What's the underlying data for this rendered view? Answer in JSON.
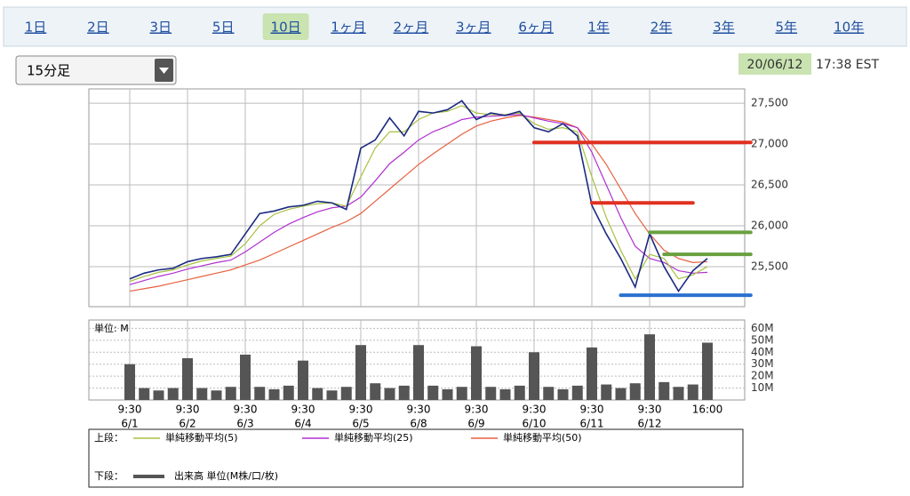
{
  "tabs": [
    "1日",
    "2日",
    "3日",
    "5日",
    "10日",
    "1ヶ月",
    "2ヶ月",
    "3ヶ月",
    "6ヶ月",
    "1年",
    "2年",
    "3年",
    "5年",
    "10年"
  ],
  "selected_tab": 4,
  "interval": "15分足",
  "date": "20/06/12",
  "time": "17:38 EST",
  "legend_upper_label": "上段：",
  "legend_lower_label": "下段：",
  "chart_data": [
    {
      "type": "line",
      "categories": [
        "9:30",
        null,
        null,
        null,
        "9:30",
        null,
        null,
        null,
        "9:30",
        null,
        null,
        null,
        "9:30",
        null,
        null,
        null,
        "9:30",
        null,
        null,
        null,
        "9:30",
        null,
        null,
        null,
        "9:30",
        null,
        null,
        null,
        "9:30",
        null,
        null,
        null,
        "9:30",
        null,
        null,
        null,
        "9:30",
        null,
        null,
        null,
        "16:00"
      ],
      "dates": [
        "6/1",
        null,
        null,
        null,
        "6/2",
        null,
        null,
        null,
        "6/3",
        null,
        null,
        null,
        "6/4",
        null,
        null,
        null,
        "6/5",
        null,
        null,
        null,
        "6/8",
        null,
        null,
        null,
        "6/9",
        null,
        null,
        null,
        "6/10",
        null,
        null,
        null,
        "6/11",
        null,
        null,
        null,
        "6/12",
        null,
        null,
        null,
        null
      ],
      "ylim": [
        25010,
        27675
      ],
      "yticks": [
        {
          "value": 25500,
          "label": "25,500"
        },
        {
          "value": 26000,
          "label": "26,000"
        },
        {
          "value": 26500,
          "label": "26,500"
        },
        {
          "value": 27000,
          "label": "27,000"
        },
        {
          "value": 27500,
          "label": "27,500"
        }
      ],
      "grid": true,
      "series": [
        {
          "color": "#1a2a80",
          "values": [
            25350,
            25420,
            25460,
            25480,
            25560,
            25600,
            25620,
            25650,
            25900,
            26150,
            26180,
            26230,
            26250,
            26300,
            26280,
            26200,
            26950,
            27050,
            27320,
            27100,
            27400,
            27380,
            27420,
            27530,
            27300,
            27380,
            27350,
            27400,
            27200,
            27150,
            27250,
            27100,
            26250,
            25900,
            25600,
            25250,
            25900,
            25500,
            25200,
            25450,
            25600
          ]
        },
        {
          "name": "単純移動平均(5)",
          "color": "#a8c040",
          "values": [
            25320,
            25380,
            25430,
            25460,
            25520,
            25570,
            25600,
            25630,
            25780,
            26000,
            26140,
            26200,
            26240,
            26270,
            26280,
            26240,
            26600,
            26950,
            27150,
            27150,
            27300,
            27380,
            27400,
            27470,
            27380,
            27360,
            27360,
            27380,
            27250,
            27180,
            27200,
            27150,
            26600,
            26100,
            25700,
            25350,
            25650,
            25600,
            25350,
            25400,
            25500
          ]
        },
        {
          "name": "単純移動平均(25)",
          "color": "#b030d0",
          "values": [
            25280,
            25330,
            25380,
            25420,
            25470,
            25510,
            25550,
            25580,
            25680,
            25800,
            25920,
            26020,
            26100,
            26170,
            26220,
            26240,
            26350,
            26550,
            26760,
            26900,
            27050,
            27150,
            27220,
            27300,
            27330,
            27340,
            27350,
            27360,
            27320,
            27280,
            27250,
            27200,
            26900,
            26500,
            26100,
            25750,
            25600,
            25550,
            25450,
            25420,
            25430
          ]
        },
        {
          "name": "単純移動平均(50)",
          "color": "#e86040",
          "values": [
            25200,
            25230,
            25260,
            25300,
            25340,
            25380,
            25420,
            25460,
            25520,
            25580,
            25660,
            25740,
            25820,
            25900,
            25980,
            26050,
            26150,
            26300,
            26450,
            26600,
            26750,
            26880,
            27000,
            27120,
            27220,
            27280,
            27320,
            27350,
            27330,
            27300,
            27270,
            27200,
            27000,
            26750,
            26450,
            26150,
            25900,
            25700,
            25600,
            25550,
            25560
          ]
        }
      ],
      "drawn_lines": [
        {
          "value": 27020,
          "x_from": 28,
          "x_to": 43,
          "color": "#e03020"
        },
        {
          "value": 26280,
          "x_from": 32,
          "x_to": 39,
          "color": "#e03020"
        },
        {
          "value": 25920,
          "x_from": 36,
          "x_to": 43,
          "color": "#6aa040"
        },
        {
          "value": 25650,
          "x_from": 37,
          "x_to": 43,
          "color": "#6aa040"
        },
        {
          "value": 25150,
          "x_from": 34,
          "x_to": 43,
          "color": "#2a70d0"
        }
      ]
    },
    {
      "type": "bar",
      "unit_label": "単位: M",
      "ylim": [
        0,
        67
      ],
      "yticks": [
        {
          "value": 10,
          "label": "10M"
        },
        {
          "value": 20,
          "label": "20M"
        },
        {
          "value": 30,
          "label": "30M"
        },
        {
          "value": 40,
          "label": "40M"
        },
        {
          "value": 50,
          "label": "50M"
        },
        {
          "value": 60,
          "label": "60M"
        }
      ],
      "grid": true,
      "series": [
        {
          "name": "出来高 単位(M株/口/枚)",
          "color": "#555555",
          "values": [
            30,
            10,
            8,
            10,
            35,
            10,
            8,
            11,
            38,
            11,
            9,
            12,
            33,
            10,
            8,
            11,
            46,
            14,
            10,
            12,
            46,
            12,
            9,
            11,
            45,
            11,
            9,
            12,
            40,
            11,
            9,
            12,
            44,
            13,
            10,
            14,
            55,
            15,
            11,
            13,
            48
          ]
        }
      ]
    }
  ]
}
